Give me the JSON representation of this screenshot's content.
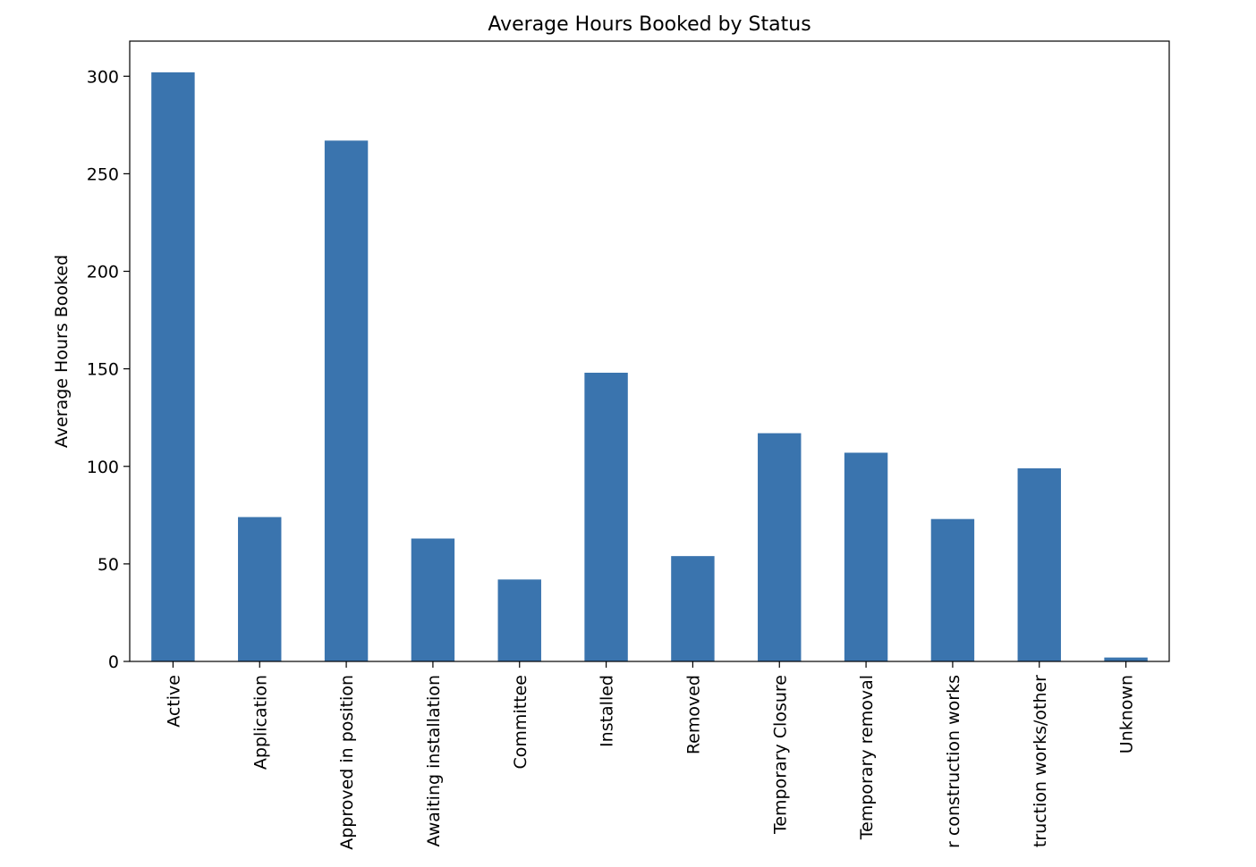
{
  "chart_data": {
    "type": "bar",
    "title": "Average Hours Booked by Status",
    "y_label": "Average Hours Booked",
    "categories": [
      "Active",
      "Application",
      "Approved in position",
      "Awaiting installation",
      "Committee",
      "Installed",
      "Removed",
      "Temporary Closure",
      "Temporary removal",
      "r construction works",
      "truction works/other",
      "Unknown"
    ],
    "values": [
      302,
      74,
      267,
      63,
      42,
      148,
      54,
      117,
      107,
      73,
      99,
      2
    ],
    "color": "#3a74ae",
    "ylim": [
      0,
      318
    ],
    "yticks": [
      0,
      50,
      100,
      150,
      200,
      250,
      300
    ],
    "grid": false
  }
}
